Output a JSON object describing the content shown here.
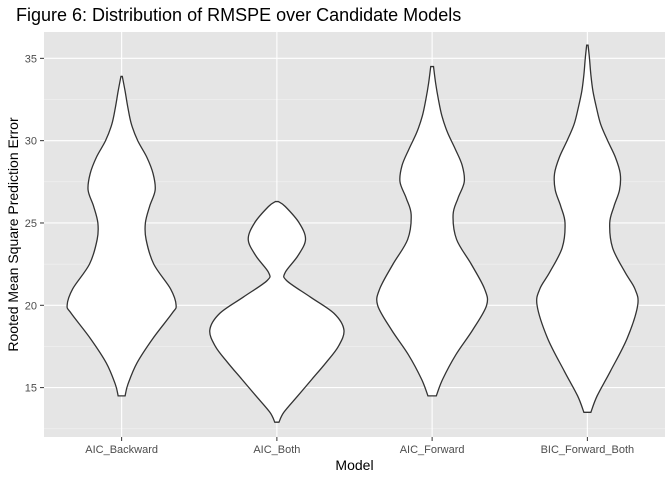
{
  "chart_data": {
    "type": "violin",
    "title": "Figure 6: Distribution of RMSPE over Candidate Models",
    "xlabel": "Model",
    "ylabel": "Rooted Mean Square Prediction Error",
    "ylim": [
      12.0,
      36.6
    ],
    "yticks": [
      15,
      20,
      25,
      30,
      35
    ],
    "grid": true,
    "categories": [
      "AIC_Backward",
      "AIC_Both",
      "AIC_Forward",
      "BIC_Forward_Both"
    ],
    "series": [
      {
        "category": "AIC_Backward",
        "min": 14.5,
        "max": 33.9,
        "density_profile": [
          [
            14.5,
            0.05
          ],
          [
            15.2,
            0.09
          ],
          [
            16.5,
            0.22
          ],
          [
            18.0,
            0.45
          ],
          [
            19.5,
            0.72
          ],
          [
            20.0,
            0.78
          ],
          [
            21.0,
            0.7
          ],
          [
            22.5,
            0.46
          ],
          [
            24.0,
            0.35
          ],
          [
            25.0,
            0.34
          ],
          [
            26.0,
            0.4
          ],
          [
            27.0,
            0.48
          ],
          [
            28.0,
            0.45
          ],
          [
            29.0,
            0.36
          ],
          [
            30.0,
            0.23
          ],
          [
            31.0,
            0.14
          ],
          [
            32.0,
            0.09
          ],
          [
            33.0,
            0.05
          ],
          [
            33.9,
            0.01
          ]
        ]
      },
      {
        "category": "AIC_Both",
        "min": 12.9,
        "max": 26.3,
        "density_profile": [
          [
            12.9,
            0.03
          ],
          [
            13.5,
            0.1
          ],
          [
            14.5,
            0.3
          ],
          [
            15.5,
            0.5
          ],
          [
            16.5,
            0.7
          ],
          [
            17.5,
            0.88
          ],
          [
            18.5,
            0.96
          ],
          [
            19.5,
            0.82
          ],
          [
            20.5,
            0.48
          ],
          [
            21.5,
            0.14
          ],
          [
            22.0,
            0.12
          ],
          [
            23.0,
            0.3
          ],
          [
            24.0,
            0.41
          ],
          [
            25.0,
            0.32
          ],
          [
            26.0,
            0.12
          ],
          [
            26.3,
            0.02
          ]
        ]
      },
      {
        "category": "AIC_Forward",
        "min": 14.5,
        "max": 34.5,
        "density_profile": [
          [
            14.5,
            0.06
          ],
          [
            15.5,
            0.15
          ],
          [
            17.0,
            0.34
          ],
          [
            18.5,
            0.58
          ],
          [
            20.0,
            0.78
          ],
          [
            21.0,
            0.75
          ],
          [
            22.5,
            0.56
          ],
          [
            24.0,
            0.35
          ],
          [
            25.5,
            0.3
          ],
          [
            26.5,
            0.37
          ],
          [
            27.5,
            0.46
          ],
          [
            28.5,
            0.43
          ],
          [
            29.5,
            0.33
          ],
          [
            30.5,
            0.22
          ],
          [
            31.5,
            0.14
          ],
          [
            32.5,
            0.09
          ],
          [
            33.5,
            0.05
          ],
          [
            34.5,
            0.02
          ]
        ]
      },
      {
        "category": "BIC_Forward_Both",
        "min": 13.5,
        "max": 35.8,
        "density_profile": [
          [
            13.5,
            0.05
          ],
          [
            14.5,
            0.14
          ],
          [
            16.0,
            0.33
          ],
          [
            18.0,
            0.57
          ],
          [
            20.0,
            0.72
          ],
          [
            21.0,
            0.68
          ],
          [
            22.0,
            0.54
          ],
          [
            23.5,
            0.36
          ],
          [
            25.0,
            0.32
          ],
          [
            26.0,
            0.38
          ],
          [
            27.0,
            0.46
          ],
          [
            28.0,
            0.47
          ],
          [
            29.0,
            0.4
          ],
          [
            30.0,
            0.29
          ],
          [
            31.0,
            0.19
          ],
          [
            32.0,
            0.13
          ],
          [
            33.0,
            0.08
          ],
          [
            34.0,
            0.05
          ],
          [
            35.0,
            0.03
          ],
          [
            35.8,
            0.01
          ]
        ]
      }
    ]
  }
}
